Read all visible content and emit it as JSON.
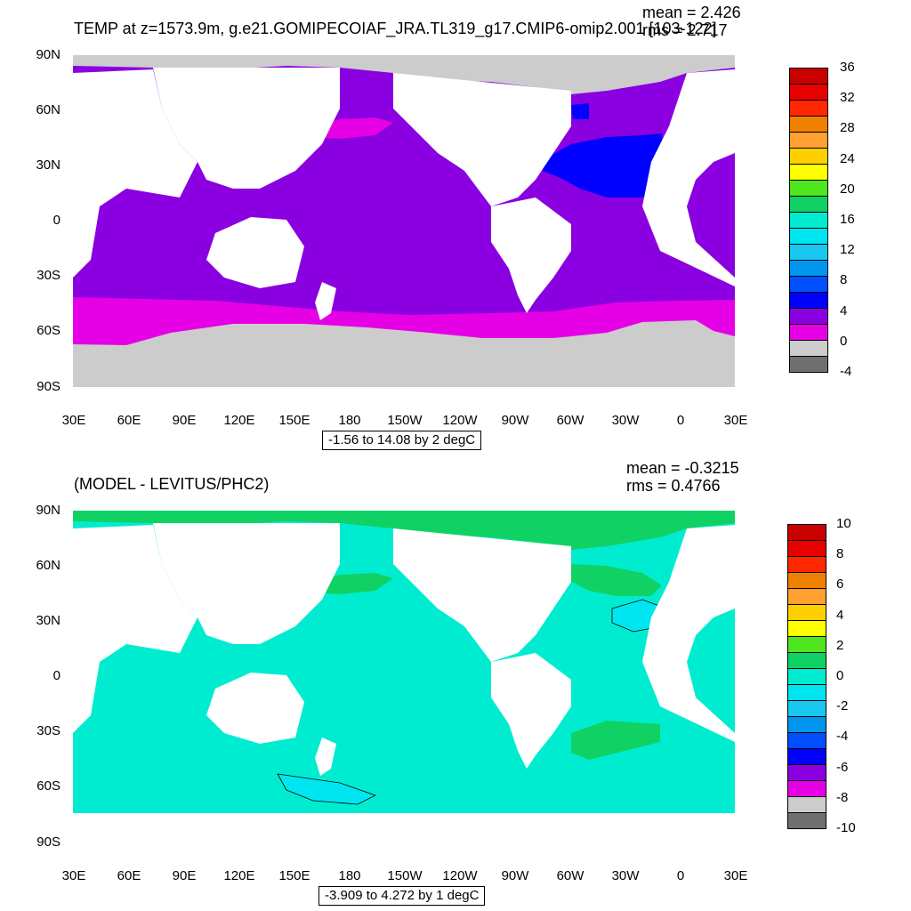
{
  "top": {
    "title": "TEMP at z=1573.9m, g.e21.GOMIPECOIAF_JRA.TL319_g17.CMIP6-omip2.001 [103-122]",
    "mean_label": "mean = 2.426",
    "rms_label": "rms = 2.717",
    "range_label": "-1.56 to 14.08 by 2 degC",
    "colorbar": {
      "labels": [
        "36",
        "32",
        "28",
        "24",
        "20",
        "16",
        "12",
        "8",
        "4",
        "0",
        "-4"
      ],
      "colors": [
        "#c80000",
        "#e60000",
        "#ff2800",
        "#f08000",
        "#ffa030",
        "#ffd000",
        "#ffff00",
        "#50e61e",
        "#10d264",
        "#00ecd0",
        "#00e6f0",
        "#18c8f0",
        "#0096f0",
        "#0050ff",
        "#0000ff",
        "#8a00e0",
        "#e600e6",
        "#cccccc",
        "#707070"
      ]
    }
  },
  "bottom": {
    "title": "(MODEL - LEVITUS/PHC2)",
    "mean_label": "mean = -0.3215",
    "rms_label": "rms = 0.4766",
    "range_label": "-3.909 to 4.272 by 1 degC",
    "colorbar": {
      "labels": [
        "10",
        "8",
        "6",
        "4",
        "2",
        "0",
        "-2",
        "-4",
        "-6",
        "-8",
        "-10"
      ],
      "colors": [
        "#c80000",
        "#e60000",
        "#ff2800",
        "#f08000",
        "#ffa030",
        "#ffd000",
        "#ffff00",
        "#50e61e",
        "#10d264",
        "#00ecd0",
        "#00e6f0",
        "#18c8f0",
        "#0096f0",
        "#0050ff",
        "#0000ff",
        "#8a00e0",
        "#e600e6",
        "#cccccc",
        "#707070"
      ]
    }
  },
  "axes": {
    "lat_labels": [
      "90N",
      "60N",
      "30N",
      "0",
      "30S",
      "60S",
      "90S"
    ],
    "lon_labels": [
      "30E",
      "60E",
      "90E",
      "120E",
      "150E",
      "180",
      "150W",
      "120W",
      "90W",
      "60W",
      "30W",
      "0",
      "30E"
    ]
  },
  "colors": {
    "top_ocean": "#8a00e0",
    "top_southern": "#e600e6",
    "top_atlantic": "#0000ff",
    "top_ice": "#cccccc",
    "bottom_ocean": "#00ecd0",
    "bottom_positive": "#10d264",
    "bottom_negative": "#00e6f0",
    "bottom_orange": "#ffa030",
    "land": "#ffffff"
  }
}
